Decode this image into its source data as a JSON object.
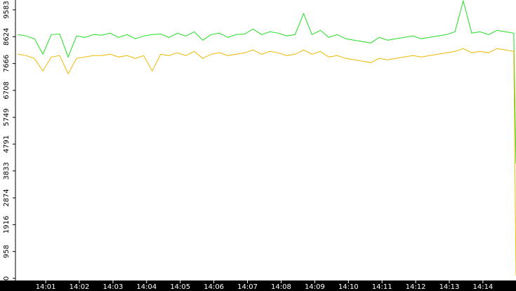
{
  "chart_data": {
    "type": "line",
    "x": [
      "14:00:10",
      "14:00:25",
      "14:00:40",
      "14:00:55",
      "14:01:10",
      "14:01:25",
      "14:01:40",
      "14:01:55",
      "14:02:10",
      "14:02:25",
      "14:02:40",
      "14:02:55",
      "14:03:10",
      "14:03:25",
      "14:03:40",
      "14:03:55",
      "14:04:10",
      "14:04:25",
      "14:04:40",
      "14:04:55",
      "14:05:10",
      "14:05:25",
      "14:05:40",
      "14:05:55",
      "14:06:10",
      "14:06:25",
      "14:06:40",
      "14:06:55",
      "14:07:10",
      "14:07:25",
      "14:07:40",
      "14:07:55",
      "14:08:10",
      "14:08:25",
      "14:08:40",
      "14:08:55",
      "14:09:10",
      "14:09:25",
      "14:09:40",
      "14:09:55",
      "14:10:10",
      "14:10:25",
      "14:10:40",
      "14:10:55",
      "14:11:10",
      "14:11:25",
      "14:11:40",
      "14:11:55",
      "14:12:10",
      "14:12:25",
      "14:12:40",
      "14:12:55",
      "14:13:10",
      "14:13:25",
      "14:13:40",
      "14:13:55",
      "14:14:10",
      "14:14:25",
      "14:14:40",
      "14:14:55",
      "14:14:59"
    ],
    "series": [
      {
        "color": "#22dd22",
        "values": [
          8700,
          8650,
          8550,
          8000,
          8700,
          8720,
          7900,
          8650,
          8600,
          8700,
          8680,
          8750,
          8600,
          8700,
          8550,
          8650,
          8700,
          8720,
          8600,
          8750,
          8650,
          8800,
          8500,
          8700,
          8750,
          8600,
          8700,
          8720,
          8900,
          8700,
          8800,
          8750,
          8650,
          8700,
          9450,
          8700,
          8850,
          8600,
          8700,
          8550,
          8500,
          8450,
          8400,
          8600,
          8500,
          8550,
          8600,
          8650,
          8550,
          8600,
          8650,
          8700,
          8800,
          9900,
          8750,
          8800,
          8700,
          8850,
          8800,
          8750,
          4100
        ]
      },
      {
        "color": "#f0b800",
        "values": [
          8000,
          7950,
          7850,
          7400,
          7900,
          7950,
          7300,
          7850,
          7900,
          7950,
          7950,
          8000,
          7900,
          7950,
          7850,
          7950,
          7400,
          8000,
          7950,
          8050,
          7950,
          8100,
          7850,
          8000,
          8050,
          7950,
          8000,
          8050,
          8150,
          8000,
          8100,
          8050,
          7950,
          8000,
          8150,
          8000,
          8100,
          7900,
          7950,
          7850,
          7800,
          7750,
          7700,
          7850,
          7800,
          7850,
          7900,
          7950,
          7900,
          7950,
          8000,
          8050,
          8100,
          8200,
          8050,
          8100,
          8050,
          8200,
          8150,
          8100,
          100
        ]
      }
    ],
    "xlim": [
      "14:00:06",
      "14:14:59"
    ],
    "xticks": [
      {
        "value": "14:01:00",
        "label": "14:01"
      },
      {
        "value": "14:02:00",
        "label": "14:02"
      },
      {
        "value": "14:03:00",
        "label": "14:03"
      },
      {
        "value": "14:04:00",
        "label": "14:04"
      },
      {
        "value": "14:05:00",
        "label": "14:05"
      },
      {
        "value": "14:06:00",
        "label": "14:06"
      },
      {
        "value": "14:07:00",
        "label": "14:07"
      },
      {
        "value": "14:08:00",
        "label": "14:08"
      },
      {
        "value": "14:09:00",
        "label": "14:09"
      },
      {
        "value": "14:10:00",
        "label": "14:10"
      },
      {
        "value": "14:11:00",
        "label": "14:11"
      },
      {
        "value": "14:12:00",
        "label": "14:12"
      },
      {
        "value": "14:13:00",
        "label": "14:13"
      },
      {
        "value": "14:14:00",
        "label": "14:14"
      }
    ],
    "ylim": [
      0,
      9583
    ],
    "yticks": [
      0,
      958,
      1916,
      2874,
      3833,
      4791,
      5749,
      6708,
      7666,
      8624,
      9583
    ]
  }
}
